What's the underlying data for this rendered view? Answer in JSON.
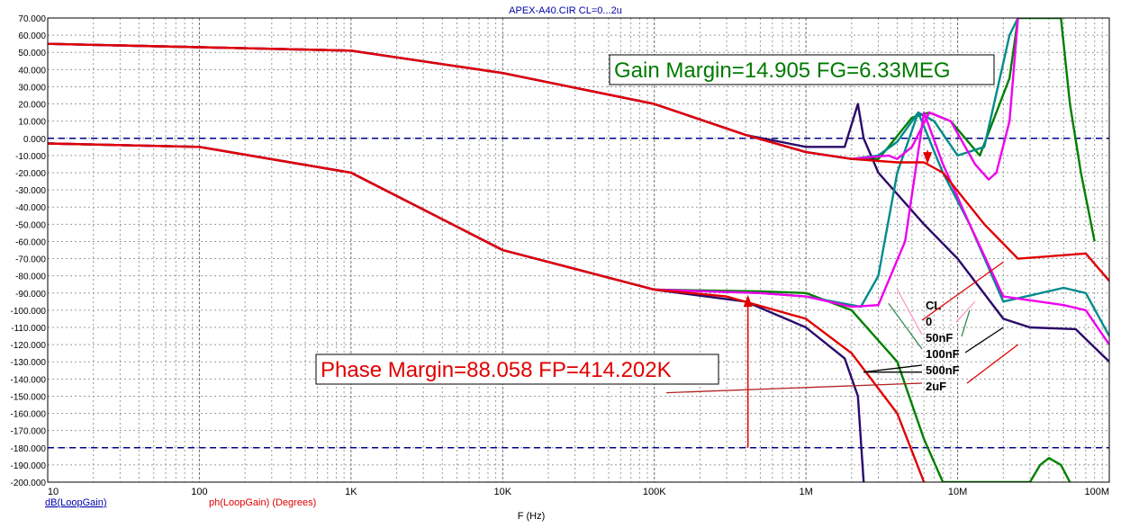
{
  "window": {
    "title": "APEX-A40.CIR CL=0...2u"
  },
  "chart_data": {
    "type": "line",
    "title": "APEX-A40.CIR CL=0...2u",
    "xlabel": "F (Hz)",
    "xscale": "log",
    "xlim": [
      10,
      100000000
    ],
    "ylim": [
      -200,
      70
    ],
    "grid": true,
    "y_ticks": [
      "70.000",
      "60.000",
      "50.000",
      "40.000",
      "30.000",
      "20.000",
      "10.000",
      "0.000",
      "-10.000",
      "-20.000",
      "-30.000",
      "-40.000",
      "-50.000",
      "-60.000",
      "-70.000",
      "-80.000",
      "-90.000",
      "-100.000",
      "-110.000",
      "-120.000",
      "-130.000",
      "-140.000",
      "-150.000",
      "-160.000",
      "-170.000",
      "-180.000",
      "-190.000",
      "-200.000"
    ],
    "x_ticks": [
      {
        "label": "10",
        "value": 10
      },
      {
        "label": "100",
        "value": 100
      },
      {
        "label": "1K",
        "value": 1000
      },
      {
        "label": "10K",
        "value": 10000
      },
      {
        "label": "100K",
        "value": 100000
      },
      {
        "label": "1M",
        "value": 1000000
      },
      {
        "label": "10M",
        "value": 10000000
      },
      {
        "label": "100M",
        "value": 100000000
      }
    ],
    "legend_left": "dB(LoopGain)",
    "legend_right": "ph(LoopGain) (Degrees)",
    "legend_title": "CL",
    "reference_lines": [
      {
        "y": 0,
        "color": "#00008b"
      },
      {
        "y": -180,
        "color": "#00008b"
      }
    ],
    "annotations": {
      "gain_margin": "Gain Margin=14.905 FG=6.33MEG",
      "phase_margin": "Phase Margin=88.058 FP=414.202K"
    },
    "series": [
      {
        "name": "0",
        "color": "#e00000",
        "gain": [
          [
            10,
            55
          ],
          [
            1000,
            51
          ],
          [
            10000,
            38
          ],
          [
            100000,
            20
          ],
          [
            400000,
            2
          ],
          [
            1000000,
            -8
          ],
          [
            2000000,
            -12
          ],
          [
            4000000,
            -14
          ],
          [
            6000000,
            -14
          ],
          [
            8000000,
            -20
          ],
          [
            15000000,
            -50
          ],
          [
            25000000,
            -70
          ],
          [
            50000000,
            -68
          ],
          [
            70000000,
            -67
          ],
          [
            100000000,
            -83
          ]
        ],
        "phase": [
          [
            10,
            -3
          ],
          [
            100,
            -5
          ],
          [
            1000,
            -20
          ],
          [
            10000,
            -65
          ],
          [
            100000,
            -88
          ],
          [
            300000,
            -92
          ],
          [
            1000000,
            -105
          ],
          [
            2000000,
            -125
          ],
          [
            4000000,
            -160
          ],
          [
            6000000,
            -200
          ]
        ]
      },
      {
        "name": "50nF",
        "color": "#ee00ee",
        "gain": [
          [
            10,
            55
          ],
          [
            1000,
            51
          ],
          [
            10000,
            38
          ],
          [
            100000,
            20
          ],
          [
            400000,
            2
          ],
          [
            1000000,
            -8
          ],
          [
            2000000,
            -12
          ],
          [
            3500000,
            -10
          ],
          [
            4000000,
            -12
          ],
          [
            5000000,
            -5
          ],
          [
            6500000,
            15
          ],
          [
            9000000,
            10
          ],
          [
            13000000,
            -15
          ],
          [
            16000000,
            -24
          ],
          [
            18000000,
            -20
          ],
          [
            22000000,
            10
          ],
          [
            25000000,
            70
          ]
        ],
        "phase": [
          [
            10,
            -3
          ],
          [
            100,
            -5
          ],
          [
            1000,
            -20
          ],
          [
            10000,
            -65
          ],
          [
            100000,
            -88
          ],
          [
            500000,
            -90
          ],
          [
            1000000,
            -92
          ],
          [
            2000000,
            -98
          ],
          [
            3000000,
            -97
          ],
          [
            4500000,
            -60
          ],
          [
            6000000,
            15
          ],
          [
            8000000,
            -15
          ],
          [
            12000000,
            -50
          ],
          [
            20000000,
            -92
          ],
          [
            50000000,
            -97
          ],
          [
            70000000,
            -100
          ],
          [
            100000000,
            -120
          ]
        ]
      },
      {
        "name": "100nF",
        "color": "#008b8b",
        "gain": [
          [
            10,
            55
          ],
          [
            1000,
            51
          ],
          [
            10000,
            38
          ],
          [
            100000,
            20
          ],
          [
            400000,
            2
          ],
          [
            1000000,
            -8
          ],
          [
            2000000,
            -12
          ],
          [
            3000000,
            -10
          ],
          [
            4000000,
            -2
          ],
          [
            5500000,
            15
          ],
          [
            7000000,
            10
          ],
          [
            10000000,
            -10
          ],
          [
            15000000,
            -5
          ],
          [
            22000000,
            60
          ],
          [
            25000000,
            70
          ]
        ],
        "phase": [
          [
            10,
            -3
          ],
          [
            100,
            -5
          ],
          [
            1000,
            -20
          ],
          [
            10000,
            -65
          ],
          [
            100000,
            -88
          ],
          [
            500000,
            -90
          ],
          [
            1000000,
            -92
          ],
          [
            2300000,
            -98
          ],
          [
            3000000,
            -80
          ],
          [
            4000000,
            -20
          ],
          [
            5500000,
            15
          ],
          [
            8000000,
            -20
          ],
          [
            12000000,
            -50
          ],
          [
            20000000,
            -95
          ],
          [
            50000000,
            -87
          ],
          [
            70000000,
            -90
          ],
          [
            100000000,
            -115
          ]
        ]
      },
      {
        "name": "500nF",
        "color": "#2a0a6a",
        "gain": [
          [
            10,
            55
          ],
          [
            1000,
            51
          ],
          [
            10000,
            38
          ],
          [
            100000,
            20
          ],
          [
            400000,
            2
          ],
          [
            1000000,
            -5
          ],
          [
            1800000,
            -5
          ],
          [
            2200000,
            20
          ],
          [
            2400000,
            0
          ],
          [
            3000000,
            -20
          ],
          [
            6000000,
            -50
          ],
          [
            10000000,
            -70
          ],
          [
            20000000,
            -105
          ],
          [
            30000000,
            -110
          ],
          [
            60000000,
            -111
          ],
          [
            100000000,
            -130
          ]
        ],
        "phase": [
          [
            10,
            -3
          ],
          [
            100,
            -5
          ],
          [
            1000,
            -20
          ],
          [
            10000,
            -65
          ],
          [
            100000,
            -88
          ],
          [
            400000,
            -95
          ],
          [
            1000000,
            -110
          ],
          [
            1800000,
            -128
          ],
          [
            2200000,
            -150
          ],
          [
            2400000,
            -200
          ]
        ]
      },
      {
        "name": "2uF",
        "color": "#008000",
        "gain": [
          [
            10,
            55
          ],
          [
            1000,
            51
          ],
          [
            10000,
            38
          ],
          [
            100000,
            20
          ],
          [
            400000,
            2
          ],
          [
            1000000,
            -8
          ],
          [
            2000000,
            -12
          ],
          [
            3000000,
            -12
          ],
          [
            3500000,
            -5
          ],
          [
            5000000,
            12
          ],
          [
            6500000,
            15
          ],
          [
            9000000,
            10
          ],
          [
            14000000,
            -10
          ],
          [
            22000000,
            35
          ],
          [
            25000000,
            70
          ],
          [
            40000000,
            70
          ],
          [
            48000000,
            70
          ],
          [
            55000000,
            20
          ],
          [
            65000000,
            -20
          ],
          [
            80000000,
            -60
          ]
        ],
        "phase": [
          [
            10,
            -3
          ],
          [
            100,
            -5
          ],
          [
            1000,
            -20
          ],
          [
            10000,
            -65
          ],
          [
            100000,
            -88
          ],
          [
            500000,
            -89
          ],
          [
            1000000,
            -90
          ],
          [
            2000000,
            -100
          ],
          [
            4000000,
            -130
          ],
          [
            6000000,
            -175
          ],
          [
            8000000,
            -200
          ],
          [
            30000000,
            -200
          ],
          [
            35000000,
            -190
          ],
          [
            40000000,
            -186
          ],
          [
            48000000,
            -190
          ],
          [
            55000000,
            -200
          ]
        ]
      }
    ]
  }
}
